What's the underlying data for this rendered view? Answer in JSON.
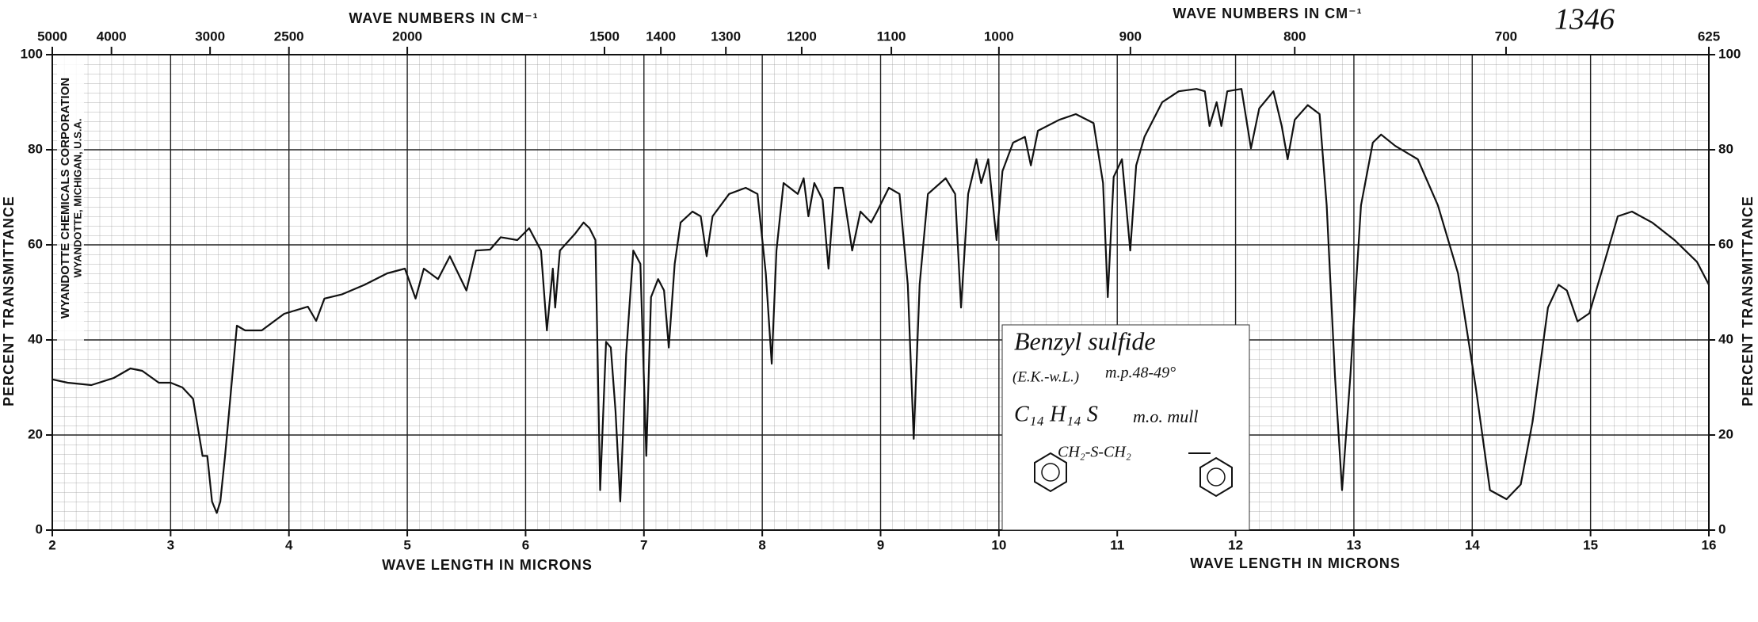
{
  "chart_data": {
    "type": "line",
    "xlabel": "WAVE LENGTH IN MICRONS",
    "x2label": "WAVE NUMBERS IN CM⁻¹",
    "ylabel": "PERCENT TRANSMITTANCE",
    "xlim": [
      2,
      16
    ],
    "xticks": [
      2,
      3,
      4,
      5,
      6,
      7,
      8,
      9,
      10,
      11,
      12,
      13,
      14,
      15,
      16
    ],
    "x2lim": [
      5000,
      625
    ],
    "x2ticks": [
      5000,
      4000,
      3000,
      2500,
      2000,
      1500,
      1400,
      1300,
      1200,
      1100,
      1000,
      900,
      800,
      700,
      625
    ],
    "ylim": [
      0,
      100
    ],
    "yticks": [
      0,
      20,
      40,
      60,
      80,
      100
    ],
    "grid": true,
    "color": "#111111",
    "x": [
      2.0,
      2.13,
      2.33,
      2.52,
      2.66,
      2.76,
      2.9,
      3.0,
      3.1,
      3.19,
      3.27,
      3.31,
      3.35,
      3.39,
      3.42,
      3.46,
      3.52,
      3.56,
      3.63,
      3.77,
      3.96,
      4.16,
      4.23,
      4.3,
      4.45,
      4.64,
      4.83,
      4.98,
      5.07,
      5.14,
      5.26,
      5.36,
      5.5,
      5.58,
      5.7,
      5.79,
      5.93,
      6.03,
      6.13,
      6.18,
      6.23,
      6.25,
      6.29,
      6.42,
      6.49,
      6.54,
      6.59,
      6.63,
      6.68,
      6.72,
      6.76,
      6.8,
      6.85,
      6.91,
      6.97,
      7.02,
      7.06,
      7.12,
      7.17,
      7.21,
      7.26,
      7.31,
      7.41,
      7.48,
      7.53,
      7.58,
      7.72,
      7.86,
      7.96,
      8.03,
      8.08,
      8.12,
      8.18,
      8.3,
      8.35,
      8.39,
      8.44,
      8.51,
      8.56,
      8.61,
      8.68,
      8.76,
      8.83,
      8.92,
      8.97,
      9.07,
      9.16,
      9.23,
      9.28,
      9.33,
      9.4,
      9.55,
      9.63,
      9.68,
      9.74,
      9.81,
      9.85,
      9.91,
      9.98,
      10.03,
      10.12,
      10.22,
      10.27,
      10.33,
      10.51,
      10.65,
      10.8,
      10.88,
      10.92,
      10.97,
      11.04,
      11.11,
      11.16,
      11.23,
      11.38,
      11.52,
      11.67,
      11.74,
      11.78,
      11.84,
      11.88,
      11.93,
      12.05,
      12.13,
      12.2,
      12.32,
      12.39,
      12.44,
      12.5,
      12.61,
      12.71,
      12.77,
      12.84,
      12.9,
      12.97,
      13.06,
      13.16,
      13.23,
      13.35,
      13.54,
      13.71,
      13.88,
      14.03,
      14.15,
      14.29,
      14.41,
      14.51,
      14.64,
      14.73,
      14.8,
      14.89,
      14.99,
      15.09,
      15.23,
      15.35,
      15.52,
      15.71,
      15.9,
      16.0
    ],
    "values": [
      31.7,
      31,
      30.5,
      32,
      34,
      33.5,
      31,
      31,
      30,
      27.6,
      15.6,
      15.6,
      6,
      3.6,
      6,
      15.6,
      32,
      43,
      42,
      42,
      45.5,
      47,
      44,
      48.7,
      49.6,
      51.6,
      54,
      55,
      48.7,
      55,
      52.8,
      57.6,
      50.4,
      58.8,
      59,
      61.6,
      61,
      63.5,
      58.8,
      42,
      55,
      46.8,
      58.8,
      62.4,
      64.7,
      63.5,
      61,
      8.4,
      39.6,
      38.4,
      25,
      6,
      37,
      58.8,
      56,
      15.6,
      49,
      52.8,
      50.4,
      38.4,
      56,
      64.7,
      67,
      66,
      57.6,
      66,
      70.7,
      72,
      70.7,
      54,
      35,
      58.8,
      73,
      70.7,
      74,
      66,
      73,
      69.5,
      55,
      72,
      72,
      58.8,
      67,
      64.7,
      67,
      72,
      70.7,
      51.6,
      19.2,
      51.6,
      70.7,
      74,
      70.7,
      46.8,
      70.7,
      78,
      73,
      78,
      61,
      75.5,
      81.5,
      82.7,
      76.7,
      84,
      86.3,
      87.5,
      85.6,
      73,
      49,
      74.3,
      78,
      58.8,
      76.7,
      82.7,
      90,
      92.3,
      92.8,
      92.3,
      85,
      90,
      85,
      92.3,
      92.8,
      80.3,
      88.7,
      92.3,
      85,
      78,
      86.3,
      89.4,
      87.5,
      68.3,
      32.4,
      8.4,
      32.4,
      68.3,
      81.5,
      83.2,
      80.8,
      78,
      68.3,
      54,
      30,
      8.4,
      6.5,
      9.6,
      22.8,
      46.8,
      51.6,
      50.4,
      43.9,
      45.6,
      54,
      66,
      67,
      64.7,
      61,
      56.4,
      51.6
    ],
    "annotations": {
      "catalog_number": "1346",
      "company": [
        "WYANDOTTE CHEMICALS CORPORATION",
        "WYANDOTTE, MICHIGAN, U.S.A."
      ],
      "sample": [
        "Benzyl sulfide",
        "(E.K.-w.L.)",
        "m.p.48-49°",
        "C₁₄ H₁₄ S",
        "m.o. mull",
        "CH₂-S-CH₂"
      ]
    }
  }
}
